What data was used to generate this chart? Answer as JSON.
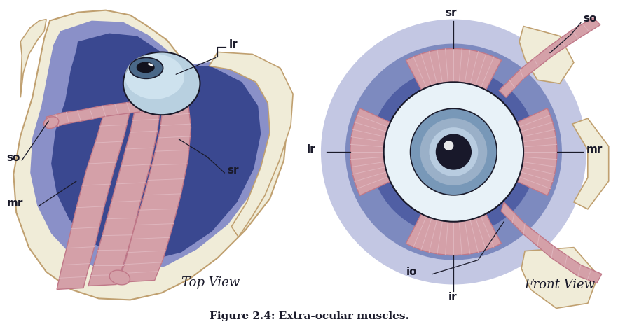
{
  "title": "Figure 2.4: Extra-ocular muscles.",
  "title_fontsize": 11,
  "title_fontweight": "bold",
  "bg_color": "#FFFFFF",
  "top_view_label": "Top View",
  "front_view_label": "Front View",
  "colors": {
    "orbit_outer": "#8A90C8",
    "orbit_inner": "#3A4890",
    "orbit_mid": "#5560A8",
    "muscle_fill": "#D4A0A8",
    "muscle_dark": "#C07888",
    "muscle_stripe": "#E0B8C0",
    "eye_sclera": "#C8DCE8",
    "eye_iris": "#5878A0",
    "eye_pupil": "#1A1830",
    "skin": "#F0E0C0",
    "skin_edge": "#C0A070",
    "bone_white": "#F0ECD8",
    "dark": "#1A1A2A",
    "line": "#1A1A2A"
  }
}
